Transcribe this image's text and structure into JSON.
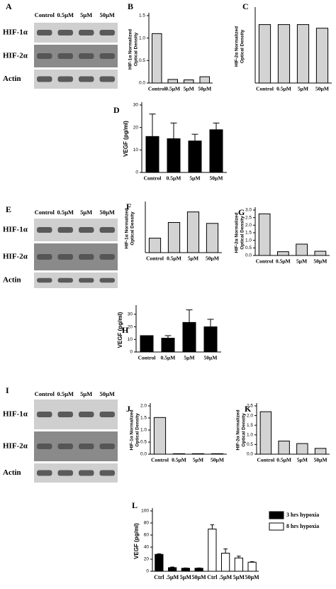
{
  "blots": [
    {
      "label": "A",
      "lanes": [
        "Control",
        "0.5µM",
        "5µM",
        "50µM"
      ],
      "rows": [
        "HIF-1α",
        "HIF-2α",
        "Actin"
      ]
    },
    {
      "label": "E",
      "lanes": [
        "Control",
        "0.5µM",
        "5µM",
        "50µM"
      ],
      "rows": [
        "HIF-1α",
        "HIF-2α",
        "Actin"
      ]
    },
    {
      "label": "I",
      "lanes": [
        "Control",
        "0.5µM",
        "5µM",
        "50µM"
      ],
      "rows": [
        "HIF-1α",
        "HIF-2α",
        "Actin"
      ]
    }
  ],
  "chart_data": [
    {
      "type": "bar",
      "label": "B",
      "ylabel": [
        "HIF-1α Normalized",
        "Optical Density"
      ],
      "categories": [
        "Control",
        "0.5µM",
        "5µM",
        "50µM"
      ],
      "values": [
        1.1,
        0.08,
        0.07,
        0.14
      ],
      "color": "#d3d3d3",
      "ylim": [
        0,
        1.5
      ],
      "yticks": [
        {
          "value": 0,
          "label": "0.0"
        },
        {
          "value": 0.5,
          "label": "0.5"
        },
        {
          "value": 1,
          "label": "1.0"
        },
        {
          "value": 1.5,
          "label": "1.5"
        }
      ]
    },
    {
      "type": "bar",
      "label": "C",
      "ylabel": [
        "HIF-2α Normalized",
        "Optical Density"
      ],
      "categories": [
        "Control",
        "0.5µM",
        "5µM",
        "50µM"
      ],
      "values": [
        1.6,
        1.6,
        1.6,
        1.5
      ],
      "color": "#d3d3d3",
      "ylim": [
        0,
        2
      ]
    },
    {
      "type": "bar",
      "label": "D",
      "ylabel": [
        "VEGF (pg/ml)"
      ],
      "categories": [
        "Control",
        "0.5µM",
        "5µM",
        "50µM"
      ],
      "values": [
        16,
        15,
        14,
        19
      ],
      "errors": [
        10,
        7,
        3,
        3
      ],
      "color": "#000000",
      "ylim": [
        0,
        30
      ],
      "yticks": [
        0,
        10,
        20,
        30
      ]
    },
    {
      "type": "bar",
      "label": "F",
      "ylabel": [
        "HIF-1α Normalized",
        "Optical Density"
      ],
      "categories": [
        "Control",
        "0.5µM",
        "5µM",
        "50µM"
      ],
      "values": [
        0.48,
        1.0,
        1.35,
        0.97
      ],
      "color": "#d3d3d3",
      "ylim": [
        0,
        1.6
      ]
    },
    {
      "type": "bar",
      "label": "G",
      "ylabel": [
        "HIF-2α Normalized",
        "Optical Density"
      ],
      "categories": [
        "Control",
        "0.5µM",
        "5µM",
        "50µM"
      ],
      "values": [
        2.75,
        0.25,
        0.75,
        0.28
      ],
      "color": "#d3d3d3",
      "ylim": [
        0,
        3
      ],
      "yticks": [
        {
          "value": 0,
          "label": "0.0"
        },
        {
          "value": 0.5,
          "label": "0.5"
        },
        {
          "value": 1,
          "label": "1.0"
        },
        {
          "value": 1.5,
          "label": "1.5"
        },
        {
          "value": 2,
          "label": "2.0"
        },
        {
          "value": 2.5,
          "label": "2.5"
        },
        {
          "value": 3,
          "label": "3.0"
        }
      ]
    },
    {
      "type": "bar",
      "label": "H",
      "ylabel": [
        "VEGF (pg/ml)"
      ],
      "categories": [
        "Control",
        "0.5µM",
        "5µM",
        "50µM"
      ],
      "values": [
        13,
        11,
        23.5,
        20
      ],
      "errors": [
        0,
        2,
        10,
        6
      ],
      "color": "#000000",
      "ylim": [
        0,
        35
      ],
      "yticks": [
        0,
        10,
        20,
        30
      ]
    },
    {
      "type": "bar",
      "label": "J",
      "ylabel": [
        "HIF-1α Normalized",
        "Optical Density"
      ],
      "categories": [
        "Control",
        "0.5µM",
        "5µM",
        "50µM"
      ],
      "values": [
        1.52,
        0.02,
        0.02,
        0.02
      ],
      "color": "#d3d3d3",
      "ylim": [
        0,
        2
      ],
      "yticks": [
        {
          "value": 0,
          "label": "0.0"
        },
        {
          "value": 0.5,
          "label": "0.5"
        },
        {
          "value": 1,
          "label": "1.0"
        },
        {
          "value": 1.5,
          "label": "1.5"
        },
        {
          "value": 2,
          "label": "2.0"
        }
      ]
    },
    {
      "type": "bar",
      "label": "K",
      "ylabel": [
        "HIF-2α Normalized",
        "Optical Density"
      ],
      "categories": [
        "Control",
        "0.5µM",
        "5µM",
        "50µM"
      ],
      "values": [
        2.2,
        0.68,
        0.55,
        0.3
      ],
      "color": "#d3d3d3",
      "ylim": [
        0,
        2.5
      ],
      "yticks": [
        {
          "value": 0,
          "label": "0.0"
        },
        {
          "value": 0.5,
          "label": "0.5"
        },
        {
          "value": 1,
          "label": "1.0"
        },
        {
          "value": 1.5,
          "label": "1.5"
        },
        {
          "value": 2,
          "label": "2.0"
        },
        {
          "value": 2.5,
          "label": "2.5"
        }
      ]
    },
    {
      "type": "bar",
      "label": "L",
      "ylabel": [
        "VEGF (pg/ml)"
      ],
      "categories": [
        "Ctrl",
        ".5µM",
        "5µM",
        "50µM",
        "Ctrl",
        ".5µM",
        "5µM",
        "50µM"
      ],
      "ylim": [
        0,
        100
      ],
      "yticks": [
        0,
        20,
        40,
        60,
        80,
        100
      ],
      "series": [
        {
          "name": "3 hrs  hypoxia",
          "color": "#000000",
          "values": [
            28,
            6,
            5,
            5,
            null,
            null,
            null,
            null
          ],
          "errors": [
            1,
            1,
            0.5,
            0.5,
            null,
            null,
            null,
            null
          ]
        },
        {
          "name": "8 hrs hypoxia",
          "color": "#ffffff",
          "values": [
            null,
            null,
            null,
            null,
            70,
            30,
            22,
            15
          ],
          "errors": [
            null,
            null,
            null,
            null,
            7,
            7,
            3,
            1
          ]
        }
      ]
    }
  ]
}
